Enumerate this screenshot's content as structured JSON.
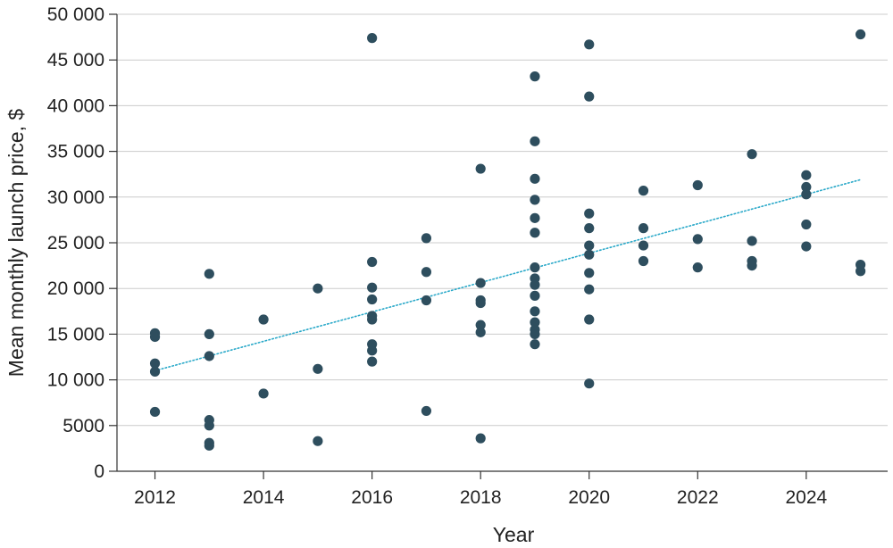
{
  "chart_data": {
    "type": "scatter",
    "title": "",
    "xlabel": "Year",
    "ylabel": "Mean monthly launch price, $",
    "xlim": [
      2011.3,
      2025.5
    ],
    "ylim": [
      0,
      50000
    ],
    "x_ticks": [
      2012,
      2014,
      2016,
      2018,
      2020,
      2022,
      2024
    ],
    "x_tick_labels": [
      "2012",
      "2014",
      "2016",
      "2018",
      "2020",
      "2022",
      "2024"
    ],
    "y_ticks": [
      0,
      5000,
      10000,
      15000,
      20000,
      25000,
      30000,
      35000,
      40000,
      45000,
      50000
    ],
    "y_tick_labels": [
      "0",
      "5000",
      "10 000",
      "15 000",
      "20 000",
      "25 000",
      "30 000",
      "35 000",
      "40 000",
      "45 000",
      "50 000"
    ],
    "grid": "horizontal",
    "legend": "none",
    "colors": {
      "points": "#2e4e5e",
      "trendline": "#2aa9c9",
      "grid": "#cccccc",
      "axis": "#333333"
    },
    "series": [
      {
        "points": [
          {
            "x": 2012,
            "y": 15100
          },
          {
            "x": 2012,
            "y": 14700
          },
          {
            "x": 2012,
            "y": 11800
          },
          {
            "x": 2012,
            "y": 10900
          },
          {
            "x": 2012,
            "y": 6500
          },
          {
            "x": 2013,
            "y": 21600
          },
          {
            "x": 2013,
            "y": 15000
          },
          {
            "x": 2013,
            "y": 12600
          },
          {
            "x": 2013,
            "y": 5600
          },
          {
            "x": 2013,
            "y": 5000
          },
          {
            "x": 2013,
            "y": 3100
          },
          {
            "x": 2013,
            "y": 2800
          },
          {
            "x": 2014,
            "y": 16600
          },
          {
            "x": 2014,
            "y": 8500
          },
          {
            "x": 2015,
            "y": 20000
          },
          {
            "x": 2015,
            "y": 11200
          },
          {
            "x": 2015,
            "y": 3300
          },
          {
            "x": 2016,
            "y": 47400
          },
          {
            "x": 2016,
            "y": 22900
          },
          {
            "x": 2016,
            "y": 20100
          },
          {
            "x": 2016,
            "y": 18800
          },
          {
            "x": 2016,
            "y": 17000
          },
          {
            "x": 2016,
            "y": 16600
          },
          {
            "x": 2016,
            "y": 13900
          },
          {
            "x": 2016,
            "y": 13200
          },
          {
            "x": 2016,
            "y": 12000
          },
          {
            "x": 2017,
            "y": 25500
          },
          {
            "x": 2017,
            "y": 21800
          },
          {
            "x": 2017,
            "y": 18700
          },
          {
            "x": 2017,
            "y": 6600
          },
          {
            "x": 2018,
            "y": 33100
          },
          {
            "x": 2018,
            "y": 20600
          },
          {
            "x": 2018,
            "y": 18700
          },
          {
            "x": 2018,
            "y": 18400
          },
          {
            "x": 2018,
            "y": 16000
          },
          {
            "x": 2018,
            "y": 15200
          },
          {
            "x": 2018,
            "y": 3600
          },
          {
            "x": 2019,
            "y": 43200
          },
          {
            "x": 2019,
            "y": 36100
          },
          {
            "x": 2019,
            "y": 32000
          },
          {
            "x": 2019,
            "y": 29700
          },
          {
            "x": 2019,
            "y": 27700
          },
          {
            "x": 2019,
            "y": 26100
          },
          {
            "x": 2019,
            "y": 22300
          },
          {
            "x": 2019,
            "y": 21100
          },
          {
            "x": 2019,
            "y": 20400
          },
          {
            "x": 2019,
            "y": 19200
          },
          {
            "x": 2019,
            "y": 17500
          },
          {
            "x": 2019,
            "y": 16300
          },
          {
            "x": 2019,
            "y": 15500
          },
          {
            "x": 2019,
            "y": 15000
          },
          {
            "x": 2019,
            "y": 13900
          },
          {
            "x": 2020,
            "y": 46700
          },
          {
            "x": 2020,
            "y": 41000
          },
          {
            "x": 2020,
            "y": 28200
          },
          {
            "x": 2020,
            "y": 26600
          },
          {
            "x": 2020,
            "y": 24700
          },
          {
            "x": 2020,
            "y": 23700
          },
          {
            "x": 2020,
            "y": 21700
          },
          {
            "x": 2020,
            "y": 19900
          },
          {
            "x": 2020,
            "y": 16600
          },
          {
            "x": 2020,
            "y": 9600
          },
          {
            "x": 2021,
            "y": 30700
          },
          {
            "x": 2021,
            "y": 26600
          },
          {
            "x": 2021,
            "y": 24700
          },
          {
            "x": 2021,
            "y": 23000
          },
          {
            "x": 2022,
            "y": 31300
          },
          {
            "x": 2022,
            "y": 25400
          },
          {
            "x": 2022,
            "y": 22300
          },
          {
            "x": 2023,
            "y": 34700
          },
          {
            "x": 2023,
            "y": 25200
          },
          {
            "x": 2023,
            "y": 23000
          },
          {
            "x": 2023,
            "y": 22500
          },
          {
            "x": 2024,
            "y": 32400
          },
          {
            "x": 2024,
            "y": 31100
          },
          {
            "x": 2024,
            "y": 30300
          },
          {
            "x": 2024,
            "y": 27000
          },
          {
            "x": 2024,
            "y": 24600
          },
          {
            "x": 2025,
            "y": 47800
          },
          {
            "x": 2025,
            "y": 22600
          },
          {
            "x": 2025,
            "y": 21900
          }
        ]
      }
    ],
    "trendline": {
      "style": "dotted",
      "x": [
        2012,
        2025
      ],
      "y": [
        11000,
        31900
      ]
    }
  }
}
